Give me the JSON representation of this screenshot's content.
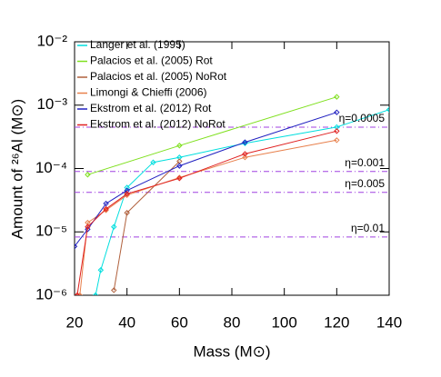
{
  "chart_data": {
    "type": "line",
    "xlabel": "Mass (M⊙)",
    "ylabel": "Amount of ²⁶Al (M⊙)",
    "log_y": true,
    "xlim": [
      20,
      140
    ],
    "xticks": [
      20,
      40,
      60,
      80,
      100,
      120,
      140
    ],
    "ylim": [
      1e-06,
      0.01
    ],
    "yticks": [
      {
        "value": 1e-06,
        "label": "10⁻⁶"
      },
      {
        "value": 1e-05,
        "label": "10⁻⁵"
      },
      {
        "value": 0.0001,
        "label": "10⁻⁴"
      },
      {
        "value": 0.001,
        "label": "10⁻³"
      },
      {
        "value": 0.01,
        "label": "10⁻²"
      }
    ],
    "legend": "upper left",
    "series": [
      {
        "name": "Langer et al. (1995)",
        "color": "#00dede",
        "x": [
          28,
          30,
          35,
          40,
          50,
          60,
          85,
          120,
          140
        ],
        "values": [
          1e-06,
          2.5e-06,
          1.2e-05,
          5e-05,
          0.000125,
          0.00015,
          0.00025,
          0.00045,
          0.00085
        ]
      },
      {
        "name": "Palacios et al. (2005) Rot",
        "color": "#7fe01e",
        "x": [
          25,
          60,
          120
        ],
        "values": [
          8e-05,
          0.00023,
          0.00135
        ]
      },
      {
        "name": "Palacios et al. (2005) NoRot",
        "color": "#b0603c",
        "x": [
          35,
          40,
          60
        ],
        "values": [
          1.2e-06,
          2e-05,
          0.00013
        ]
      },
      {
        "name": "Limongi & Chieffi (2006)",
        "color": "#e8804c",
        "x": [
          22,
          25,
          32,
          40,
          60,
          85,
          120
        ],
        "values": [
          1e-06,
          1.4e-05,
          2.2e-05,
          3.8e-05,
          7.2e-05,
          0.00015,
          0.00028
        ]
      },
      {
        "name": "Ekstrom et al. (2012) Rot",
        "color": "#2020c0",
        "x": [
          20,
          25,
          32,
          40,
          60,
          85,
          120
        ],
        "values": [
          5.9e-06,
          1.1e-05,
          2.8e-05,
          4.5e-05,
          0.00011,
          0.00026,
          0.00077
        ]
      },
      {
        "name": "Ekstrom et al. (2012) NoRot",
        "color": "#e02020",
        "x": [
          21,
          25,
          32,
          40,
          60,
          85,
          120
        ],
        "values": [
          1e-06,
          1.2e-05,
          2.3e-05,
          4e-05,
          7e-05,
          0.00017,
          0.00039
        ]
      }
    ],
    "hlines": [
      {
        "value": 0.00045,
        "label": "η=0.0005"
      },
      {
        "value": 9e-05,
        "label": "η=0.001"
      },
      {
        "value": 4.2e-05,
        "label": "η=0.005"
      },
      {
        "value": 8.3e-06,
        "label": "η=0.01"
      }
    ],
    "hline_color": "#a040e0"
  }
}
